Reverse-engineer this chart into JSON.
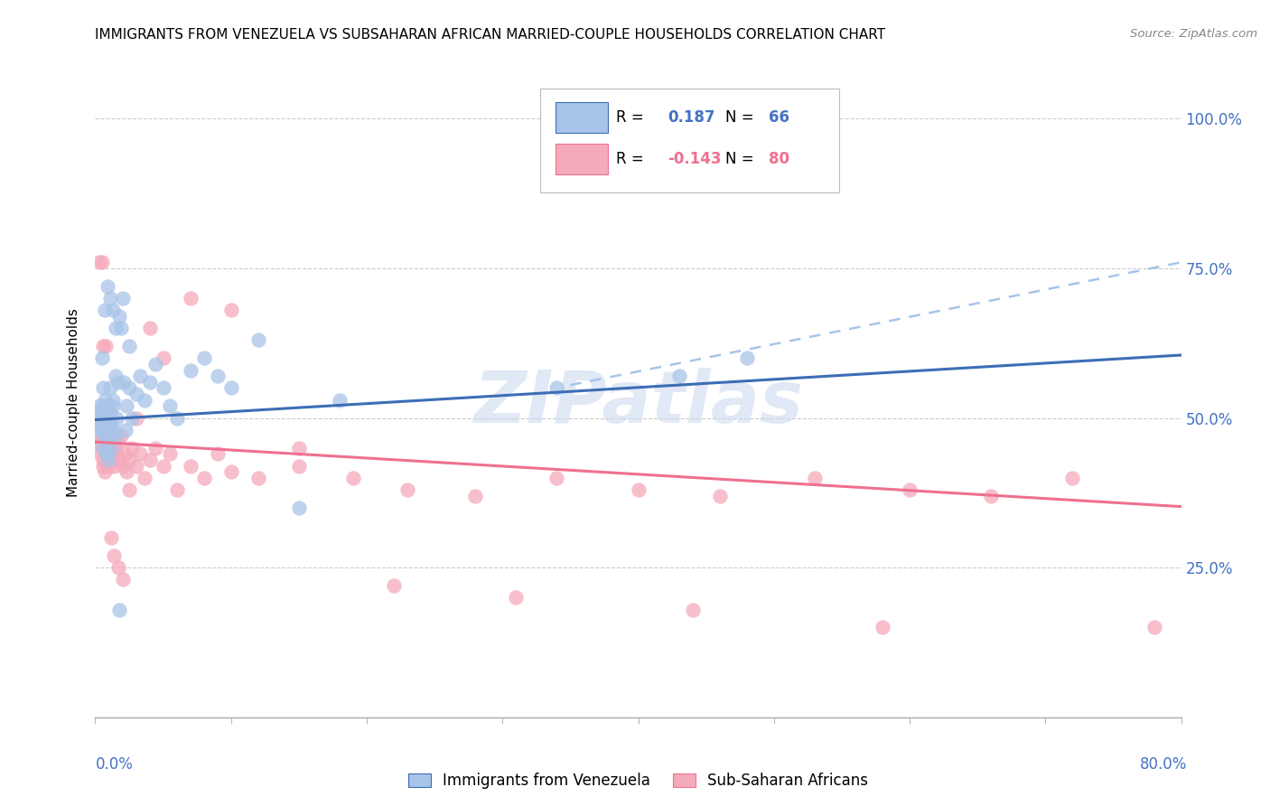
{
  "title": "IMMIGRANTS FROM VENEZUELA VS SUBSAHARAN AFRICAN MARRIED-COUPLE HOUSEHOLDS CORRELATION CHART",
  "source": "Source: ZipAtlas.com",
  "ylabel": "Married-couple Households",
  "R1": 0.187,
  "N1": 66,
  "R2": -0.143,
  "N2": 80,
  "color_blue_scatter": "#A8C4E8",
  "color_pink_scatter": "#F5AABB",
  "color_blue_line": "#3D6DB5",
  "color_pink_line": "#EF7090",
  "color_blue_dashed": "#A8C4E8",
  "color_right_axis": "#4472C4",
  "legend_label1": "Immigrants from Venezuela",
  "legend_label2": "Sub-Saharan Africans",
  "xmin": 0.0,
  "xmax": 0.8,
  "ymin": 0.0,
  "ymax": 1.05,
  "yticks": [
    0.25,
    0.5,
    0.75,
    1.0
  ],
  "ytick_labels": [
    "25.0%",
    "50.0%",
    "75.0%",
    "100.0%"
  ],
  "watermark": "ZIPatlas",
  "blue_line_x": [
    0.0,
    0.8
  ],
  "blue_line_y": [
    0.497,
    0.605
  ],
  "pink_line_x": [
    0.0,
    0.8
  ],
  "pink_line_y": [
    0.46,
    0.352
  ],
  "dashed_line_x": [
    0.35,
    0.8
  ],
  "dashed_line_y": [
    0.555,
    0.76
  ],
  "venezuela_x": [
    0.002,
    0.003,
    0.003,
    0.004,
    0.004,
    0.005,
    0.005,
    0.005,
    0.006,
    0.006,
    0.006,
    0.007,
    0.007,
    0.007,
    0.008,
    0.008,
    0.008,
    0.009,
    0.009,
    0.01,
    0.01,
    0.01,
    0.011,
    0.011,
    0.012,
    0.012,
    0.013,
    0.013,
    0.014,
    0.015,
    0.015,
    0.016,
    0.017,
    0.018,
    0.019,
    0.02,
    0.022,
    0.023,
    0.025,
    0.027,
    0.03,
    0.033,
    0.036,
    0.04,
    0.044,
    0.05,
    0.055,
    0.06,
    0.07,
    0.08,
    0.09,
    0.1,
    0.12,
    0.15,
    0.18,
    0.34,
    0.43,
    0.48,
    0.007,
    0.009,
    0.011,
    0.013,
    0.015,
    0.018,
    0.021,
    0.025
  ],
  "venezuela_y": [
    0.5,
    0.49,
    0.52,
    0.51,
    0.48,
    0.52,
    0.48,
    0.6,
    0.55,
    0.5,
    0.45,
    0.48,
    0.53,
    0.47,
    0.44,
    0.46,
    0.49,
    0.52,
    0.48,
    0.5,
    0.43,
    0.47,
    0.51,
    0.55,
    0.49,
    0.45,
    0.53,
    0.52,
    0.48,
    0.47,
    0.57,
    0.5,
    0.56,
    0.67,
    0.65,
    0.7,
    0.48,
    0.52,
    0.55,
    0.5,
    0.54,
    0.57,
    0.53,
    0.56,
    0.59,
    0.55,
    0.52,
    0.5,
    0.58,
    0.6,
    0.57,
    0.55,
    0.63,
    0.35,
    0.53,
    0.55,
    0.57,
    0.6,
    0.68,
    0.72,
    0.7,
    0.68,
    0.65,
    0.18,
    0.56,
    0.62
  ],
  "subsaharan_x": [
    0.002,
    0.003,
    0.003,
    0.004,
    0.004,
    0.005,
    0.005,
    0.006,
    0.006,
    0.006,
    0.007,
    0.007,
    0.007,
    0.008,
    0.008,
    0.009,
    0.009,
    0.01,
    0.01,
    0.011,
    0.011,
    0.012,
    0.012,
    0.013,
    0.014,
    0.015,
    0.016,
    0.017,
    0.018,
    0.019,
    0.02,
    0.022,
    0.023,
    0.025,
    0.027,
    0.03,
    0.033,
    0.036,
    0.04,
    0.044,
    0.05,
    0.055,
    0.06,
    0.07,
    0.08,
    0.09,
    0.1,
    0.12,
    0.15,
    0.19,
    0.23,
    0.28,
    0.34,
    0.4,
    0.46,
    0.53,
    0.6,
    0.66,
    0.72,
    0.78,
    0.003,
    0.005,
    0.006,
    0.008,
    0.01,
    0.012,
    0.014,
    0.017,
    0.02,
    0.025,
    0.03,
    0.04,
    0.05,
    0.07,
    0.1,
    0.15,
    0.22,
    0.31,
    0.44,
    0.58
  ],
  "subsaharan_y": [
    0.49,
    0.46,
    0.5,
    0.44,
    0.47,
    0.45,
    0.48,
    0.43,
    0.46,
    0.42,
    0.47,
    0.45,
    0.41,
    0.48,
    0.44,
    0.46,
    0.43,
    0.47,
    0.42,
    0.45,
    0.49,
    0.44,
    0.43,
    0.47,
    0.42,
    0.45,
    0.44,
    0.46,
    0.43,
    0.47,
    0.42,
    0.44,
    0.41,
    0.43,
    0.45,
    0.42,
    0.44,
    0.4,
    0.43,
    0.45,
    0.42,
    0.44,
    0.38,
    0.42,
    0.4,
    0.44,
    0.41,
    0.4,
    0.42,
    0.4,
    0.38,
    0.37,
    0.4,
    0.38,
    0.37,
    0.4,
    0.38,
    0.37,
    0.4,
    0.15,
    0.76,
    0.76,
    0.62,
    0.62,
    0.48,
    0.3,
    0.27,
    0.25,
    0.23,
    0.38,
    0.5,
    0.65,
    0.6,
    0.7,
    0.68,
    0.45,
    0.22,
    0.2,
    0.18,
    0.15
  ]
}
